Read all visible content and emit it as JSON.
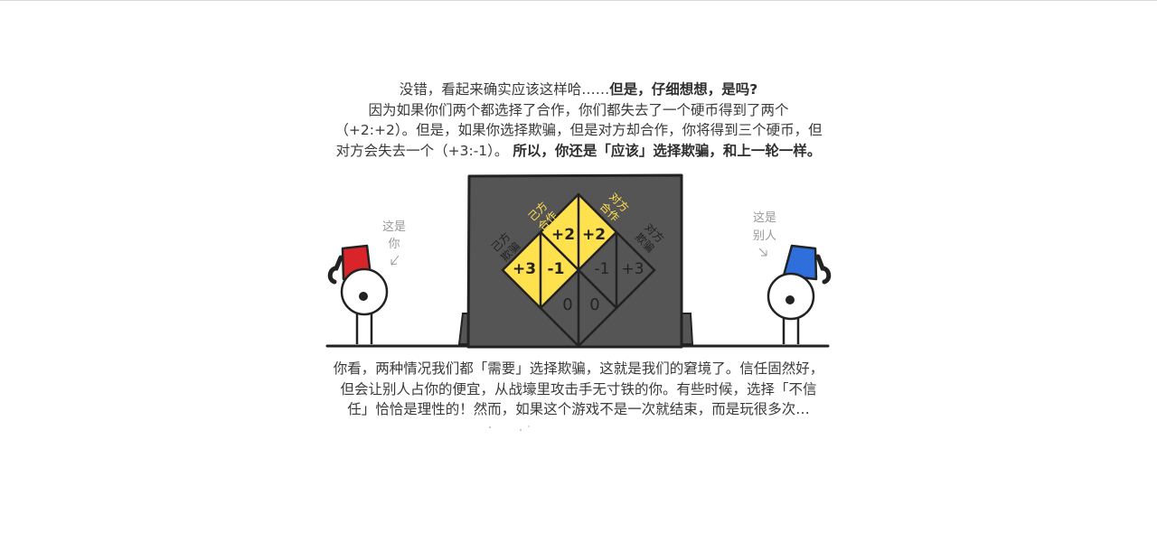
{
  "intro": {
    "line1_normal": "没错，看起来确实应该这样哈……",
    "line1_bold": "但是，仔细想想，是吗?",
    "line2": "因为如果你们两个都选择了合作，你们都失去了一个硬币得到了两个",
    "line3": "（+2:+2）。但是，如果你选择欺骗，但是对方却合作，你将得到三个硬币，但",
    "line4_normal": "对方会失去一个（+3:-1）。",
    "line4_bold": "所以，你还是「应该」选择欺骗，和上一轮一样。"
  },
  "machine": {
    "label_you_cooperate": [
      "己方",
      "合作"
    ],
    "label_other_cooperate": [
      "对方",
      "合作"
    ],
    "label_you_cheat": [
      "己方",
      "欺骗"
    ],
    "label_other_cheat": [
      "对方",
      "欺骗"
    ],
    "cell_top_left": "+2",
    "cell_top_right": "+2",
    "cell_left_a": "+3",
    "cell_left_b": "-1",
    "cell_right_a": "-1",
    "cell_right_b": "+3",
    "cell_bottom_a": "0",
    "cell_bottom_b": "0"
  },
  "player_you": {
    "caption_1": "这是",
    "caption_2": "你",
    "hat_color": "#d9252a"
  },
  "player_other": {
    "caption_1": "这是",
    "caption_2": "别人",
    "hat_color": "#2f6fdb"
  },
  "outro": {
    "line1": "你看，两种情况我们都「需要」选择欺骗，这就是我们的窘境了。信任固然好，",
    "line2": "但会让别人占你的便宜，从战壕里攻击手无寸铁的你。有些时候，选择「不信",
    "line3": "任」恰恰是理性的！然而，如果这个游戏不是一次就结束，而是玩很多次…"
  },
  "colors": {
    "machine_body": "#555555",
    "cooperate_yellow": "#ffe04d",
    "caption_gray": "#999999"
  }
}
